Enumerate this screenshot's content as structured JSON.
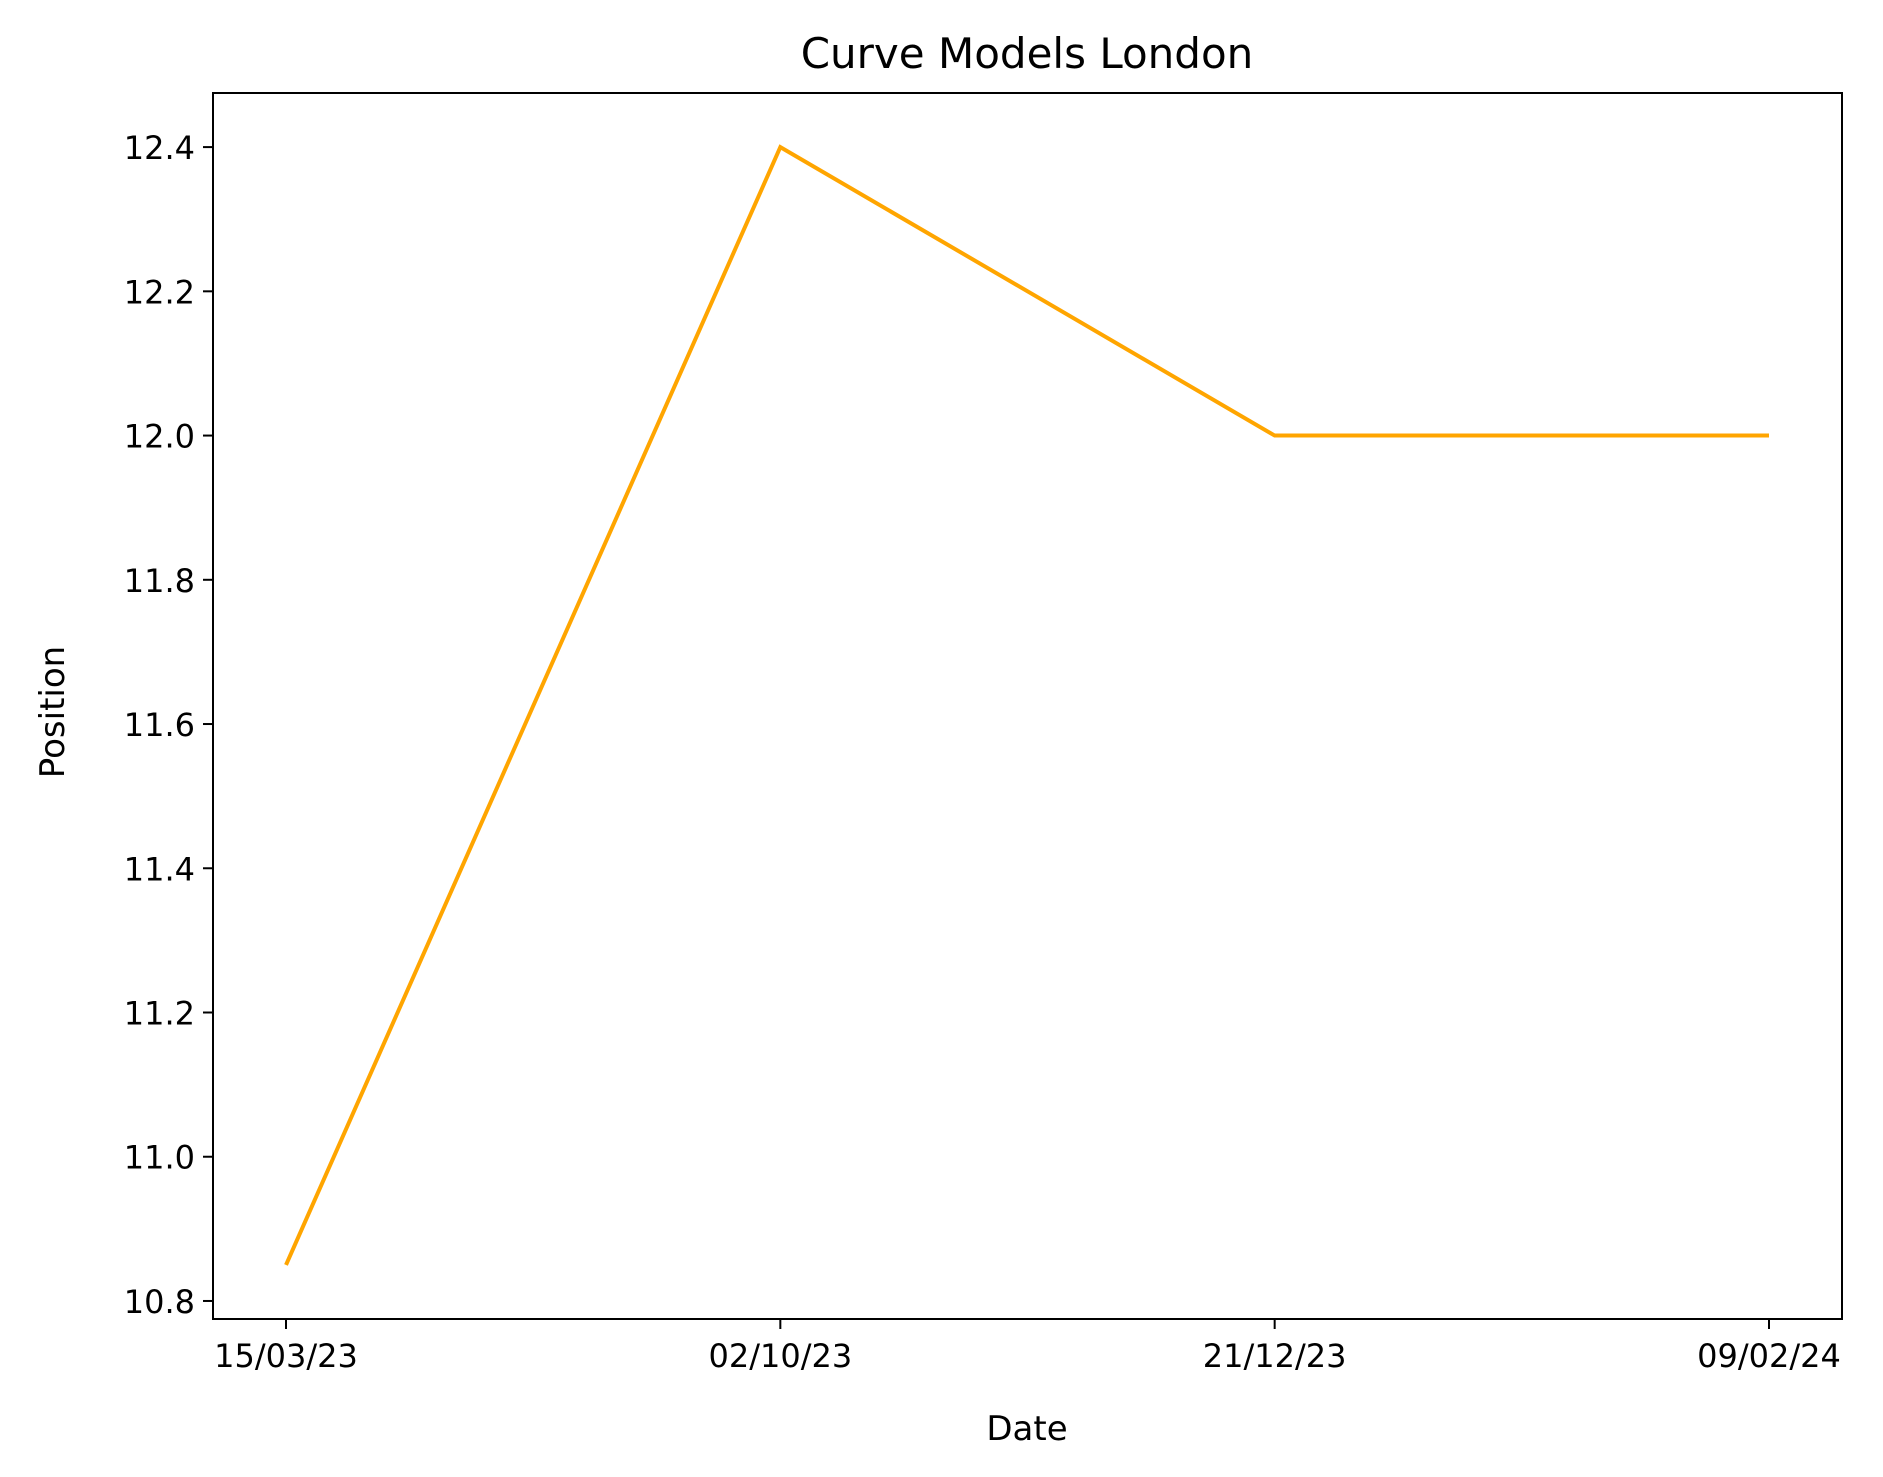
{
  "chart_data": {
    "type": "line",
    "title": "Curve Models London",
    "xlabel": "Date",
    "ylabel": "Position",
    "categories": [
      "15/03/23",
      "02/10/23",
      "21/12/23",
      "09/02/24"
    ],
    "series": [
      {
        "values": [
          10.85,
          12.4,
          12.0,
          12.0
        ],
        "color": "#FFA500"
      }
    ],
    "ylim": [
      10.775,
      12.475
    ],
    "yticks": [
      "10.8",
      "11.0",
      "11.2",
      "11.4",
      "11.6",
      "11.8",
      "12.0",
      "12.2",
      "12.4"
    ],
    "grid": false,
    "legend": "none"
  }
}
